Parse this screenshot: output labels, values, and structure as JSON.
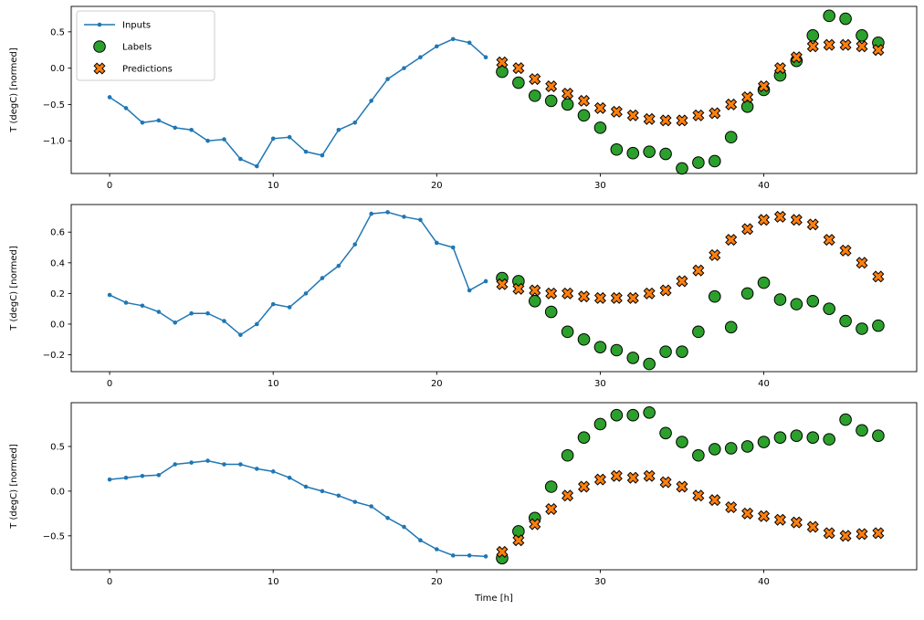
{
  "figure": {
    "xlabel": "Time [h]",
    "ylabel": "T (degC) [normed]",
    "background": "#ffffff",
    "legend": {
      "position": "upper-left-subplot-1",
      "items": [
        {
          "label": "Inputs",
          "marker": "line-dot",
          "color": "#1f77b4"
        },
        {
          "label": "Labels",
          "marker": "circle",
          "color": "#2ca02c",
          "edge": "#000000"
        },
        {
          "label": "Predictions",
          "marker": "x",
          "color": "#ff7f0e",
          "edge": "#000000"
        }
      ]
    }
  },
  "chart_data": [
    {
      "type": "line",
      "title": "",
      "xlabel": "",
      "ylabel": "T (degC) [normed]",
      "xlim": [
        -2.35,
        49.35
      ],
      "ylim": [
        -1.45,
        0.85
      ],
      "xticks": [
        0,
        10,
        20,
        30,
        40
      ],
      "yticks": [
        0.5,
        0.0,
        -0.5,
        -1.0
      ],
      "grid": false,
      "series": [
        {
          "name": "Inputs",
          "marker": "line-dot",
          "color": "#1f77b4",
          "x": [
            0,
            1,
            2,
            3,
            4,
            5,
            6,
            7,
            8,
            9,
            10,
            11,
            12,
            13,
            14,
            15,
            16,
            17,
            18,
            19,
            20,
            21,
            22,
            23
          ],
          "y": [
            -0.4,
            -0.55,
            -0.75,
            -0.72,
            -0.82,
            -0.85,
            -1.0,
            -0.98,
            -1.25,
            -1.35,
            -0.97,
            -0.95,
            -1.15,
            -1.2,
            -0.85,
            -0.75,
            -0.45,
            -0.15,
            0.0,
            0.15,
            0.3,
            0.4,
            0.35,
            0.15
          ]
        },
        {
          "name": "Labels",
          "marker": "circle",
          "color": "#2ca02c",
          "edge": "#000000",
          "x": [
            24,
            25,
            26,
            27,
            28,
            29,
            30,
            31,
            32,
            33,
            34,
            35,
            36,
            37,
            38,
            39,
            40,
            41,
            42,
            43,
            44,
            45,
            46,
            47
          ],
          "y": [
            -0.05,
            -0.2,
            -0.38,
            -0.45,
            -0.5,
            -0.65,
            -0.82,
            -1.12,
            -1.17,
            -1.15,
            -1.18,
            -1.38,
            -1.3,
            -1.28,
            -0.95,
            -0.53,
            -0.3,
            -0.1,
            0.1,
            0.45,
            0.72,
            0.68,
            0.45,
            0.35
          ]
        },
        {
          "name": "Predictions",
          "marker": "x",
          "color": "#ff7f0e",
          "edge": "#000000",
          "x": [
            24,
            25,
            26,
            27,
            28,
            29,
            30,
            31,
            32,
            33,
            34,
            35,
            36,
            37,
            38,
            39,
            40,
            41,
            42,
            43,
            44,
            45,
            46,
            47
          ],
          "y": [
            0.08,
            0.0,
            -0.15,
            -0.25,
            -0.35,
            -0.45,
            -0.55,
            -0.6,
            -0.65,
            -0.7,
            -0.72,
            -0.72,
            -0.65,
            -0.62,
            -0.5,
            -0.4,
            -0.25,
            0.0,
            0.15,
            0.3,
            0.32,
            0.32,
            0.3,
            0.25
          ]
        }
      ]
    },
    {
      "type": "line",
      "title": "",
      "xlabel": "",
      "ylabel": "T (degC) [normed]",
      "xlim": [
        -2.35,
        49.35
      ],
      "ylim": [
        -0.31,
        0.78
      ],
      "xticks": [
        0,
        10,
        20,
        30,
        40
      ],
      "yticks": [
        0.6,
        0.4,
        0.2,
        0.0,
        -0.2
      ],
      "grid": false,
      "series": [
        {
          "name": "Inputs",
          "marker": "line-dot",
          "color": "#1f77b4",
          "x": [
            0,
            1,
            2,
            3,
            4,
            5,
            6,
            7,
            8,
            9,
            10,
            11,
            12,
            13,
            14,
            15,
            16,
            17,
            18,
            19,
            20,
            21,
            22,
            23
          ],
          "y": [
            0.19,
            0.14,
            0.12,
            0.08,
            0.01,
            0.07,
            0.07,
            0.02,
            -0.07,
            0.0,
            0.13,
            0.11,
            0.2,
            0.3,
            0.38,
            0.52,
            0.72,
            0.73,
            0.7,
            0.68,
            0.53,
            0.5,
            0.22,
            0.28
          ]
        },
        {
          "name": "Labels",
          "marker": "circle",
          "color": "#2ca02c",
          "edge": "#000000",
          "x": [
            24,
            25,
            26,
            27,
            28,
            29,
            30,
            31,
            32,
            33,
            34,
            35,
            36,
            37,
            38,
            39,
            40,
            41,
            42,
            43,
            44,
            45,
            46,
            47
          ],
          "y": [
            0.3,
            0.28,
            0.15,
            0.08,
            -0.05,
            -0.1,
            -0.15,
            -0.17,
            -0.22,
            -0.26,
            -0.18,
            -0.18,
            -0.05,
            0.18,
            -0.02,
            0.2,
            0.27,
            0.16,
            0.13,
            0.15,
            0.1,
            0.02,
            -0.03,
            -0.01
          ]
        },
        {
          "name": "Predictions",
          "marker": "x",
          "color": "#ff7f0e",
          "edge": "#000000",
          "x": [
            24,
            25,
            26,
            27,
            28,
            29,
            30,
            31,
            32,
            33,
            34,
            35,
            36,
            37,
            38,
            39,
            40,
            41,
            42,
            43,
            44,
            45,
            46,
            47
          ],
          "y": [
            0.26,
            0.23,
            0.22,
            0.2,
            0.2,
            0.18,
            0.17,
            0.17,
            0.17,
            0.2,
            0.22,
            0.28,
            0.35,
            0.45,
            0.55,
            0.62,
            0.68,
            0.7,
            0.68,
            0.65,
            0.55,
            0.48,
            0.4,
            0.31
          ]
        }
      ]
    },
    {
      "type": "line",
      "title": "",
      "xlabel": "Time [h]",
      "ylabel": "T (degC) [normed]",
      "xlim": [
        -2.35,
        49.35
      ],
      "ylim": [
        -0.88,
        0.99
      ],
      "xticks": [
        0,
        10,
        20,
        30,
        40
      ],
      "yticks": [
        0.5,
        0.0,
        -0.5
      ],
      "grid": false,
      "series": [
        {
          "name": "Inputs",
          "marker": "line-dot",
          "color": "#1f77b4",
          "x": [
            0,
            1,
            2,
            3,
            4,
            5,
            6,
            7,
            8,
            9,
            10,
            11,
            12,
            13,
            14,
            15,
            16,
            17,
            18,
            19,
            20,
            21,
            22,
            23
          ],
          "y": [
            0.13,
            0.15,
            0.17,
            0.18,
            0.3,
            0.32,
            0.34,
            0.3,
            0.3,
            0.25,
            0.22,
            0.15,
            0.05,
            0.0,
            -0.05,
            -0.12,
            -0.17,
            -0.3,
            -0.4,
            -0.55,
            -0.65,
            -0.72,
            -0.72,
            -0.73
          ]
        },
        {
          "name": "Labels",
          "marker": "circle",
          "color": "#2ca02c",
          "edge": "#000000",
          "x": [
            24,
            25,
            26,
            27,
            28,
            29,
            30,
            31,
            32,
            33,
            34,
            35,
            36,
            37,
            38,
            39,
            40,
            41,
            42,
            43,
            44,
            45,
            46,
            47
          ],
          "y": [
            -0.75,
            -0.45,
            -0.3,
            0.05,
            0.4,
            0.6,
            0.75,
            0.85,
            0.85,
            0.88,
            0.65,
            0.55,
            0.4,
            0.47,
            0.48,
            0.5,
            0.55,
            0.6,
            0.62,
            0.6,
            0.58,
            0.8,
            0.68,
            0.62
          ]
        },
        {
          "name": "Predictions",
          "marker": "x",
          "color": "#ff7f0e",
          "edge": "#000000",
          "x": [
            24,
            25,
            26,
            27,
            28,
            29,
            30,
            31,
            32,
            33,
            34,
            35,
            36,
            37,
            38,
            39,
            40,
            41,
            42,
            43,
            44,
            45,
            46,
            47
          ],
          "y": [
            -0.68,
            -0.55,
            -0.37,
            -0.2,
            -0.05,
            0.05,
            0.13,
            0.17,
            0.15,
            0.17,
            0.1,
            0.05,
            -0.05,
            -0.1,
            -0.18,
            -0.25,
            -0.28,
            -0.32,
            -0.35,
            -0.4,
            -0.47,
            -0.5,
            -0.48,
            -0.47
          ]
        }
      ]
    }
  ]
}
